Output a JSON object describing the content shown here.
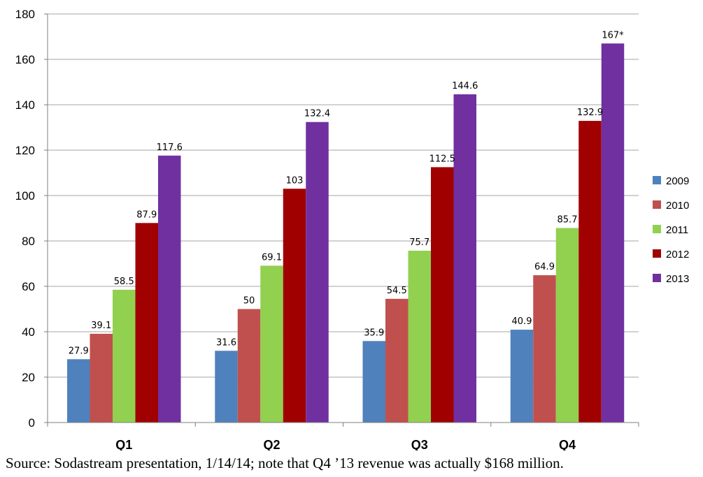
{
  "chart_data": {
    "type": "bar",
    "categories": [
      "Q1",
      "Q2",
      "Q3",
      "Q4"
    ],
    "series": [
      {
        "name": "2009",
        "color": "#4f81bd",
        "values": [
          27.9,
          31.6,
          35.9,
          40.9
        ],
        "labels": [
          "27.9",
          "31.6",
          "35.9",
          "40.9"
        ]
      },
      {
        "name": "2010",
        "color": "#c0504d",
        "values": [
          39.1,
          50,
          54.5,
          64.9
        ],
        "labels": [
          "39.1",
          "50",
          "54.5",
          "64.9"
        ]
      },
      {
        "name": "2011",
        "color": "#92d050",
        "values": [
          58.5,
          69.1,
          75.7,
          85.7
        ],
        "labels": [
          "58.5",
          "69.1",
          "75.7",
          "85.7"
        ]
      },
      {
        "name": "2012",
        "color": "#a00000",
        "values": [
          87.9,
          103,
          112.5,
          132.9
        ],
        "labels": [
          "87.9",
          "103",
          "112.5",
          "132.9"
        ]
      },
      {
        "name": "2013",
        "color": "#7030a0",
        "values": [
          117.6,
          132.4,
          144.6,
          167
        ],
        "labels": [
          "117.6",
          "132.4",
          "144.6",
          "167*"
        ]
      }
    ],
    "yticks": [
      "0",
      "20",
      "40",
      "60",
      "80",
      "100",
      "120",
      "140",
      "160",
      "180"
    ],
    "ylim": [
      0,
      180
    ],
    "grid": true,
    "legend": "right",
    "title": "",
    "xlabel": "",
    "ylabel": ""
  },
  "caption": "Source: Sodastream presentation, 1/14/14; note that Q4 ’13 revenue was actually $168 million."
}
